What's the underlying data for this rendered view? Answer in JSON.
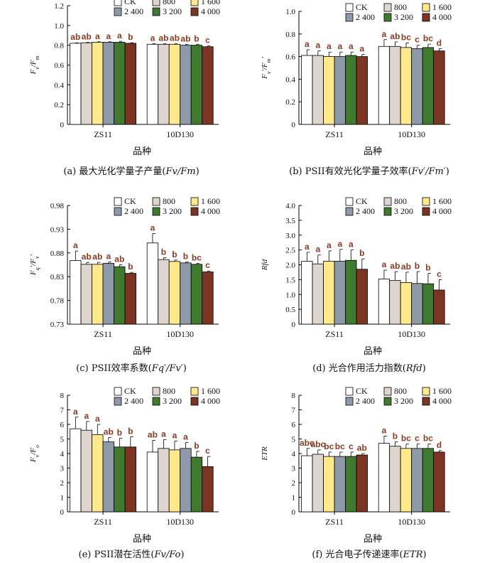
{
  "figure": {
    "series_colors": [
      "#ffffff",
      "#ded5ce",
      "#ffe98a",
      "#8e9aa9",
      "#3f7a2f",
      "#7d3422"
    ],
    "legend": [
      "CK",
      "800",
      "1 600",
      "2 400",
      "3 200",
      "4 000"
    ],
    "group_labels": [
      "ZS11",
      "10D130"
    ],
    "xlabel": "品种"
  },
  "chart_data": [
    {
      "type": "bar",
      "panel": "a",
      "caption_prefix": "(a)  最大光化学量子产量(",
      "caption_math": "Fv/Fm",
      "caption_suffix": ")",
      "ylabel_main": "F",
      "ylabel_sub1": "v",
      "ylabel_mid": "/F",
      "ylabel_sub2": "m",
      "ylabel_prime": "",
      "ylim": [
        0,
        1.2
      ],
      "yticks": [
        "0",
        "0.2",
        "0.4",
        "0.6",
        "0.8",
        "1.0",
        "1.2"
      ],
      "categories": [
        "ZS11",
        "10D130"
      ],
      "series": [
        {
          "name": "CK",
          "values": [
            0.82,
            0.81
          ],
          "err": [
            0.005,
            0.005
          ],
          "sig": [
            "ab",
            "a"
          ]
        },
        {
          "name": "800",
          "values": [
            0.825,
            0.81
          ],
          "err": [
            0.005,
            0.005
          ],
          "sig": [
            "ab",
            "ab"
          ]
        },
        {
          "name": "1 600",
          "values": [
            0.83,
            0.81
          ],
          "err": [
            0.005,
            0.005
          ],
          "sig": [
            "a",
            "ab"
          ]
        },
        {
          "name": "2 400",
          "values": [
            0.83,
            0.8
          ],
          "err": [
            0.005,
            0.01
          ],
          "sig": [
            "a",
            "ab"
          ]
        },
        {
          "name": "3 200",
          "values": [
            0.83,
            0.8
          ],
          "err": [
            0.01,
            0.01
          ],
          "sig": [
            "a",
            "b"
          ]
        },
        {
          "name": "4 000",
          "values": [
            0.82,
            0.785
          ],
          "err": [
            0.005,
            0.01
          ],
          "sig": [
            "b",
            "c"
          ]
        }
      ]
    },
    {
      "type": "bar",
      "panel": "b",
      "caption_prefix": "(b)  PSII有效光化学量子效率(",
      "caption_math": "Fv′/Fm′",
      "caption_suffix": ")",
      "ylabel_main": "F",
      "ylabel_sub1": "v",
      "ylabel_mid": "′/F",
      "ylabel_sub2": "m",
      "ylabel_prime": "′",
      "ylim": [
        0,
        1.0
      ],
      "yticks": [
        "0",
        "0.2",
        "0.4",
        "0.6",
        "0.8",
        "1.0"
      ],
      "categories": [
        "ZS11",
        "10D130"
      ],
      "series": [
        {
          "name": "CK",
          "values": [
            0.61,
            0.69
          ],
          "err": [
            0.05,
            0.06
          ],
          "sig": [
            "a",
            "a"
          ]
        },
        {
          "name": "800",
          "values": [
            0.61,
            0.69
          ],
          "err": [
            0.04,
            0.04
          ],
          "sig": [
            "a",
            "ab"
          ]
        },
        {
          "name": "1 600",
          "values": [
            0.6,
            0.68
          ],
          "err": [
            0.04,
            0.04
          ],
          "sig": [
            "a",
            "bc"
          ]
        },
        {
          "name": "2 400",
          "values": [
            0.6,
            0.67
          ],
          "err": [
            0.04,
            0.03
          ],
          "sig": [
            "a",
            "c"
          ]
        },
        {
          "name": "3 200",
          "values": [
            0.61,
            0.68
          ],
          "err": [
            0.03,
            0.03
          ],
          "sig": [
            "a",
            "bc"
          ]
        },
        {
          "name": "4 000",
          "values": [
            0.6,
            0.65
          ],
          "err": [
            0.02,
            0.02
          ],
          "sig": [
            "a",
            "d"
          ]
        }
      ]
    },
    {
      "type": "bar",
      "panel": "c",
      "caption_prefix": "(c)  PSII效率系数(",
      "caption_math": "Fq′/Fv′",
      "caption_suffix": ")",
      "ylabel_main": "F",
      "ylabel_sub1": "q",
      "ylabel_mid": "′/F",
      "ylabel_sub2": "v",
      "ylabel_prime": "′",
      "ylim": [
        0.73,
        0.98
      ],
      "yticks": [
        "0.73",
        "0.78",
        "0.83",
        "0.88",
        "0.93",
        "0.98"
      ],
      "categories": [
        "ZS11",
        "10D130"
      ],
      "series": [
        {
          "name": "CK",
          "values": [
            0.864,
            0.901
          ],
          "err": [
            0.02,
            0.02
          ],
          "sig": [
            "a",
            "a"
          ]
        },
        {
          "name": "800",
          "values": [
            0.856,
            0.866
          ],
          "err": [
            0.004,
            0.004
          ],
          "sig": [
            "ab",
            "b"
          ]
        },
        {
          "name": "1 600",
          "values": [
            0.856,
            0.862
          ],
          "err": [
            0.004,
            0.003
          ],
          "sig": [
            "ab",
            "b"
          ]
        },
        {
          "name": "2 400",
          "values": [
            0.858,
            0.859
          ],
          "err": [
            0.003,
            0.002
          ],
          "sig": [
            "a",
            "b"
          ]
        },
        {
          "name": "3 200",
          "values": [
            0.851,
            0.856
          ],
          "err": [
            0.004,
            0.002
          ],
          "sig": [
            "ab",
            "bc"
          ]
        },
        {
          "name": "4 000",
          "values": [
            0.837,
            0.84
          ],
          "err": [
            0.002,
            0.002
          ],
          "sig": [
            "b",
            "c"
          ]
        }
      ]
    },
    {
      "type": "bar",
      "panel": "d",
      "caption_prefix": "(d)  光合作用活力指数(",
      "caption_math": "Rfd",
      "caption_suffix": ")",
      "ylabel_main": "Rfd",
      "ylabel_sub1": "",
      "ylabel_mid": "",
      "ylabel_sub2": "",
      "ylabel_prime": "",
      "ylim": [
        0,
        4.0
      ],
      "yticks": [
        "0",
        "0.5",
        "1.0",
        "1.5",
        "2.0",
        "2.5",
        "3.0",
        "3.5",
        "4.0"
      ],
      "categories": [
        "ZS11",
        "10D130"
      ],
      "series": [
        {
          "name": "CK",
          "values": [
            2.12,
            1.52
          ],
          "err": [
            0.3,
            0.3
          ],
          "sig": [
            "a",
            "a"
          ]
        },
        {
          "name": "800",
          "values": [
            2.03,
            1.47
          ],
          "err": [
            0.3,
            0.3
          ],
          "sig": [
            "a",
            "ab"
          ]
        },
        {
          "name": "1 600",
          "values": [
            2.12,
            1.4
          ],
          "err": [
            0.35,
            0.35
          ],
          "sig": [
            "a",
            "ab"
          ]
        },
        {
          "name": "2 400",
          "values": [
            2.12,
            1.37
          ],
          "err": [
            0.4,
            0.4
          ],
          "sig": [
            "a",
            "b"
          ]
        },
        {
          "name": "3 200",
          "values": [
            2.15,
            1.36
          ],
          "err": [
            0.35,
            0.35
          ],
          "sig": [
            "a",
            "b"
          ]
        },
        {
          "name": "4 000",
          "values": [
            1.85,
            1.15
          ],
          "err": [
            0.35,
            0.35
          ],
          "sig": [
            "b",
            "c"
          ]
        }
      ]
    },
    {
      "type": "bar",
      "panel": "e",
      "caption_prefix": "(e)  PSII潜在活性(",
      "caption_math": "Fv/Fo",
      "caption_suffix": ")",
      "ylabel_main": "F",
      "ylabel_sub1": "v",
      "ylabel_mid": "/F",
      "ylabel_sub2": "o",
      "ylabel_prime": "",
      "ylim": [
        0,
        8
      ],
      "yticks": [
        "0",
        "1",
        "2",
        "3",
        "4",
        "5",
        "6",
        "7",
        "8"
      ],
      "categories": [
        "ZS11",
        "10D130"
      ],
      "series": [
        {
          "name": "CK",
          "values": [
            5.7,
            4.1
          ],
          "err": [
            0.8,
            0.8
          ],
          "sig": [
            "a",
            "ab"
          ]
        },
        {
          "name": "800",
          "values": [
            5.6,
            4.35
          ],
          "err": [
            0.6,
            0.6
          ],
          "sig": [
            "a",
            "a"
          ]
        },
        {
          "name": "1 600",
          "values": [
            5.3,
            4.25
          ],
          "err": [
            0.7,
            0.6
          ],
          "sig": [
            "a",
            "a"
          ]
        },
        {
          "name": "2 400",
          "values": [
            4.8,
            4.35
          ],
          "err": [
            0.3,
            0.4
          ],
          "sig": [
            "ab",
            "a"
          ]
        },
        {
          "name": "3 200",
          "values": [
            4.45,
            3.75
          ],
          "err": [
            0.6,
            0.4
          ],
          "sig": [
            "b",
            "b"
          ]
        },
        {
          "name": "4 000",
          "values": [
            4.45,
            3.1
          ],
          "err": [
            0.7,
            0.7
          ],
          "sig": [
            "b",
            "c"
          ]
        }
      ]
    },
    {
      "type": "bar",
      "panel": "f",
      "caption_prefix": "(f)  光合电子传递速率(",
      "caption_math": "ETR",
      "caption_suffix": ")",
      "ylabel_main": "ETR",
      "ylabel_sub1": "",
      "ylabel_mid": "",
      "ylabel_sub2": "",
      "ylabel_prime": "",
      "ylim": [
        0,
        8
      ],
      "yticks": [
        "0",
        "1",
        "2",
        "3",
        "4",
        "5",
        "6",
        "7",
        "8"
      ],
      "categories": [
        "ZS11",
        "10D130"
      ],
      "series": [
        {
          "name": "CK",
          "values": [
            3.85,
            4.7
          ],
          "err": [
            0.5,
            0.5
          ],
          "sig": [
            "abc",
            "a"
          ]
        },
        {
          "name": "800",
          "values": [
            3.95,
            4.5
          ],
          "err": [
            0.3,
            0.3
          ],
          "sig": [
            "abc",
            "b"
          ]
        },
        {
          "name": "1 600",
          "values": [
            3.8,
            4.35
          ],
          "err": [
            0.3,
            0.3
          ],
          "sig": [
            "bc",
            "bc"
          ]
        },
        {
          "name": "2 400",
          "values": [
            3.8,
            4.35
          ],
          "err": [
            0.3,
            0.3
          ],
          "sig": [
            "bc",
            "c"
          ]
        },
        {
          "name": "3 200",
          "values": [
            3.8,
            4.35
          ],
          "err": [
            0.3,
            0.3
          ],
          "sig": [
            "c",
            "bc"
          ]
        },
        {
          "name": "4 000",
          "values": [
            3.9,
            4.1
          ],
          "err": [
            0.1,
            0.1
          ],
          "sig": [
            "ab",
            "d"
          ]
        }
      ]
    }
  ]
}
